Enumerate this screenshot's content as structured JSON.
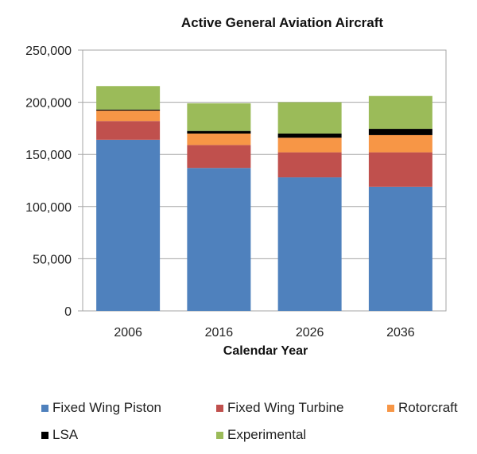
{
  "chart_data": {
    "type": "bar",
    "stacked": true,
    "title": "Active General Aviation Aircraft",
    "xlabel": "Calendar Year",
    "ylabel": "",
    "categories": [
      "2006",
      "2016",
      "2026",
      "2036"
    ],
    "ylim": [
      0,
      250000
    ],
    "yticks": [
      0,
      50000,
      100000,
      150000,
      200000,
      250000
    ],
    "ytick_labels": [
      "0",
      "50,000",
      "100,000",
      "150,000",
      "200,000",
      "250,000"
    ],
    "grid": true,
    "legend_position": "bottom",
    "series": [
      {
        "name": "Fixed Wing Piston",
        "color": "#4f81bd",
        "values": [
          164000,
          137000,
          128000,
          119000
        ]
      },
      {
        "name": "Fixed Wing Turbine",
        "color": "#c0504d",
        "values": [
          18000,
          22000,
          24000,
          33000
        ]
      },
      {
        "name": "Rotorcraft",
        "color": "#f79646",
        "values": [
          10000,
          11000,
          14000,
          16500
        ]
      },
      {
        "name": "LSA",
        "color": "#000000",
        "values": [
          1000,
          2500,
          4000,
          6000
        ]
      },
      {
        "name": "Experimental",
        "color": "#9bbb59",
        "values": [
          22500,
          26500,
          30000,
          31500
        ]
      }
    ]
  }
}
